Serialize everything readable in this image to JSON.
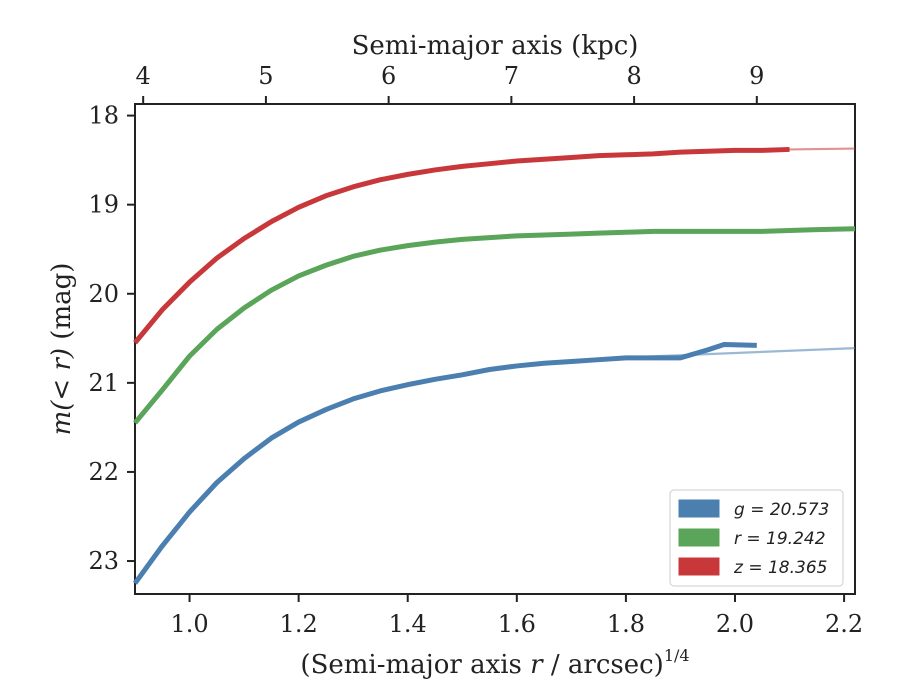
{
  "chart_data": {
    "type": "line",
    "xlabel_main": "(Semi-major axis ",
    "xlabel_var": "r",
    "xlabel_tail": " / arcsec)",
    "xlabel_sup": "1/4",
    "ylabel_main": "m(< r)",
    "ylabel_unit": " (mag)",
    "top_xlabel": "Semi-major axis (kpc)",
    "xlim": [
      0.9,
      2.22
    ],
    "ylim": [
      23.37,
      17.87
    ],
    "y_inverted": true,
    "x_ticks": [
      1.0,
      1.2,
      1.4,
      1.6,
      1.8,
      2.0,
      2.2
    ],
    "x_tick_labels": [
      "1.0",
      "1.2",
      "1.4",
      "1.6",
      "1.8",
      "2.0",
      "2.2"
    ],
    "y_ticks": [
      18,
      19,
      20,
      21,
      22,
      23
    ],
    "y_tick_labels": [
      "18",
      "19",
      "20",
      "21",
      "22",
      "23"
    ],
    "top_ticks_kpc": [
      4,
      5,
      6,
      7,
      8,
      9
    ],
    "top_tick_labels": [
      "4",
      "5",
      "6",
      "7",
      "8",
      "9"
    ],
    "kpc_to_x": {
      "4": 0.915,
      "5": 1.14,
      "6": 1.365,
      "7": 1.59,
      "8": 1.815,
      "9": 2.04
    },
    "legend_position": "lower-right",
    "grid": false,
    "series": [
      {
        "name": "z = 18.365",
        "band": "z",
        "total": "18.365",
        "color": "#c8383b",
        "x": [
          0.9,
          0.95,
          1.0,
          1.05,
          1.1,
          1.15,
          1.2,
          1.25,
          1.3,
          1.35,
          1.4,
          1.45,
          1.5,
          1.55,
          1.6,
          1.65,
          1.7,
          1.75,
          1.8,
          1.85,
          1.9,
          1.95,
          2.0,
          2.05,
          2.1
        ],
        "y": [
          20.55,
          20.18,
          19.87,
          19.6,
          19.38,
          19.19,
          19.03,
          18.9,
          18.8,
          18.72,
          18.66,
          18.61,
          18.57,
          18.54,
          18.51,
          18.49,
          18.47,
          18.45,
          18.44,
          18.43,
          18.41,
          18.4,
          18.39,
          18.39,
          18.38
        ],
        "model_x": [
          2.1,
          2.22
        ],
        "model_y": [
          18.38,
          18.37
        ]
      },
      {
        "name": "r = 19.242",
        "band": "r",
        "total": "19.242",
        "color": "#5aa55a",
        "x": [
          0.9,
          0.95,
          1.0,
          1.05,
          1.1,
          1.15,
          1.2,
          1.25,
          1.3,
          1.35,
          1.4,
          1.45,
          1.5,
          1.55,
          1.6,
          1.65,
          1.7,
          1.75,
          1.8,
          1.85,
          1.9,
          1.95,
          2.0,
          2.05,
          2.1,
          2.15,
          2.22
        ],
        "y": [
          21.45,
          21.08,
          20.7,
          20.4,
          20.16,
          19.96,
          19.8,
          19.68,
          19.58,
          19.51,
          19.46,
          19.42,
          19.39,
          19.37,
          19.35,
          19.34,
          19.33,
          19.32,
          19.31,
          19.3,
          19.3,
          19.3,
          19.3,
          19.3,
          19.29,
          19.28,
          19.27
        ]
      },
      {
        "name": "g = 20.573",
        "band": "g",
        "total": "20.573",
        "color": "#4a7fb0",
        "x": [
          0.9,
          0.95,
          1.0,
          1.05,
          1.1,
          1.15,
          1.2,
          1.25,
          1.3,
          1.35,
          1.4,
          1.45,
          1.5,
          1.55,
          1.6,
          1.65,
          1.7,
          1.75,
          1.8,
          1.85,
          1.9,
          1.95,
          1.98,
          2.04
        ],
        "y": [
          23.25,
          22.83,
          22.45,
          22.12,
          21.85,
          21.62,
          21.44,
          21.3,
          21.18,
          21.09,
          21.02,
          20.96,
          20.91,
          20.85,
          20.81,
          20.78,
          20.76,
          20.74,
          20.72,
          20.72,
          20.72,
          20.63,
          20.57,
          20.58
        ],
        "model_x": [
          1.82,
          2.22
        ],
        "model_y": [
          20.71,
          20.61
        ]
      }
    ]
  }
}
